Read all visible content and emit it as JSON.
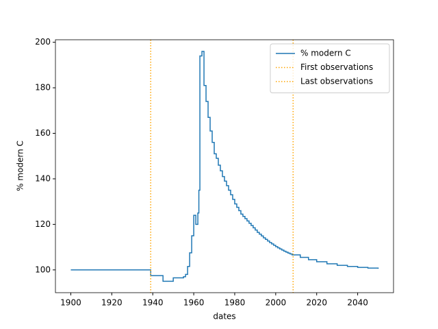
{
  "chart_data": {
    "type": "line",
    "drawstyle": "steps-post",
    "xlabel": "dates",
    "ylabel": "% modern C",
    "xlim": [
      1892.5,
      2057.5
    ],
    "xticks": [
      1900,
      1920,
      1940,
      1960,
      1980,
      2000,
      2020,
      2040
    ],
    "ylim": [
      90.0,
      201.1
    ],
    "yticks": [
      100,
      120,
      140,
      160,
      180,
      200
    ],
    "legend": "upper right",
    "x": [
      1900,
      1939,
      1945,
      1950,
      1955,
      1956,
      1957,
      1958,
      1959,
      1960,
      1961,
      1962,
      1962.5,
      1963,
      1964,
      1965,
      1966,
      1967,
      1968,
      1969,
      1970,
      1971,
      1972,
      1973,
      1974,
      1975,
      1976,
      1977,
      1978,
      1979,
      1980,
      1981,
      1982,
      1983,
      1984,
      1985,
      1986,
      1987,
      1988,
      1989,
      1990,
      1991,
      1992,
      1993,
      1994,
      1995,
      1996,
      1997,
      1998,
      1999,
      2000,
      2001,
      2002,
      2003,
      2004,
      2005,
      2006,
      2007,
      2008,
      2012,
      2016,
      2020,
      2025,
      2030,
      2035,
      2040,
      2045,
      2050
    ],
    "series": [
      {
        "name": "% modern C",
        "color": "#1f77b4",
        "values": [
          100,
          97.5,
          95,
          96.5,
          97,
          98,
          101.5,
          107.5,
          115,
          124,
          120,
          125,
          135,
          194,
          196,
          181,
          174,
          167,
          161,
          156,
          151,
          149,
          146,
          143.5,
          141,
          139,
          137,
          135,
          133,
          131,
          129,
          127.5,
          126,
          124.5,
          123.5,
          122.5,
          121.5,
          120.5,
          119.5,
          118.5,
          117.5,
          116.5,
          115.7,
          114.9,
          114.1,
          113.4,
          112.7,
          112,
          111.4,
          110.8,
          110.2,
          109.7,
          109.2,
          108.7,
          108.2,
          107.8,
          107.4,
          107,
          106.6,
          105.5,
          104.5,
          103.6,
          102.7,
          102,
          101.5,
          101.1,
          100.8,
          100.5
        ]
      }
    ],
    "vlines": [
      {
        "name": "First observations",
        "x": 1939,
        "color": "#ffa500"
      },
      {
        "name": "Last observations",
        "x": 2008.5,
        "color": "#ffa500"
      }
    ]
  }
}
